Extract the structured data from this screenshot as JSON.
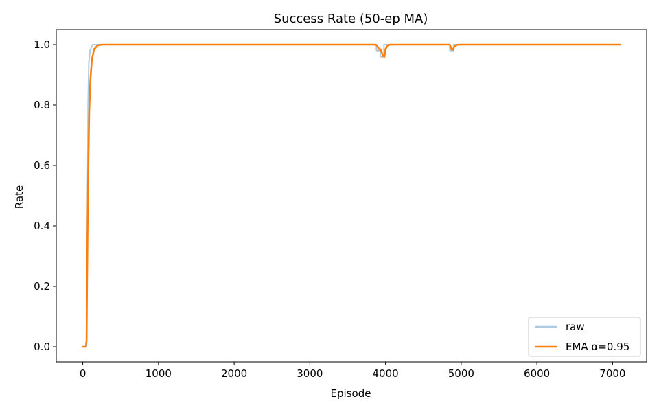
{
  "chart_data": {
    "type": "line",
    "title": "Success Rate (50-ep MA)",
    "xlabel": "Episode",
    "ylabel": "Rate",
    "xlim": [
      -350,
      7450
    ],
    "ylim": [
      -0.05,
      1.05
    ],
    "xticks": [
      0,
      1000,
      2000,
      3000,
      4000,
      5000,
      6000,
      7000
    ],
    "yticks": [
      0.0,
      0.2,
      0.4,
      0.6,
      0.8,
      1.0
    ],
    "xtick_labels": [
      "0",
      "1000",
      "2000",
      "3000",
      "4000",
      "5000",
      "6000",
      "7000"
    ],
    "ytick_labels": [
      "0.0",
      "0.2",
      "0.4",
      "0.6",
      "0.8",
      "1.0"
    ],
    "grid": false,
    "legend_position": "bottom-right",
    "series": [
      {
        "name": "raw",
        "color": "#aecbe4",
        "step": true,
        "points": [
          [
            0,
            0.0
          ],
          [
            50,
            0.0
          ],
          [
            55,
            0.2
          ],
          [
            60,
            0.4
          ],
          [
            65,
            0.6
          ],
          [
            70,
            0.8
          ],
          [
            80,
            0.94
          ],
          [
            95,
            0.98
          ],
          [
            130,
            1.0
          ],
          [
            3880,
            1.0
          ],
          [
            3880,
            0.98
          ],
          [
            3930,
            0.98
          ],
          [
            3930,
            0.96
          ],
          [
            3980,
            0.96
          ],
          [
            3980,
            1.0
          ],
          [
            4850,
            1.0
          ],
          [
            4850,
            0.98
          ],
          [
            4900,
            0.98
          ],
          [
            4900,
            1.0
          ],
          [
            7100,
            1.0
          ]
        ]
      },
      {
        "name": "EMA α=0.95",
        "color": "#ff7f0e",
        "step": false,
        "points": [
          [
            0,
            0.0
          ],
          [
            40,
            0.0
          ],
          [
            50,
            0.02
          ],
          [
            60,
            0.3
          ],
          [
            70,
            0.55
          ],
          [
            85,
            0.78
          ],
          [
            100,
            0.88
          ],
          [
            120,
            0.95
          ],
          [
            150,
            0.985
          ],
          [
            200,
            0.998
          ],
          [
            260,
            1.0
          ],
          [
            3870,
            1.0
          ],
          [
            3890,
            0.995
          ],
          [
            3915,
            0.985
          ],
          [
            3930,
            0.985
          ],
          [
            3950,
            0.975
          ],
          [
            3965,
            0.962
          ],
          [
            3985,
            0.96
          ],
          [
            4000,
            0.985
          ],
          [
            4030,
            0.998
          ],
          [
            4060,
            1.0
          ],
          [
            4850,
            1.0
          ],
          [
            4870,
            0.985
          ],
          [
            4890,
            0.983
          ],
          [
            4910,
            0.993
          ],
          [
            4940,
            0.999
          ],
          [
            4970,
            1.0
          ],
          [
            7100,
            1.0
          ]
        ]
      }
    ]
  }
}
